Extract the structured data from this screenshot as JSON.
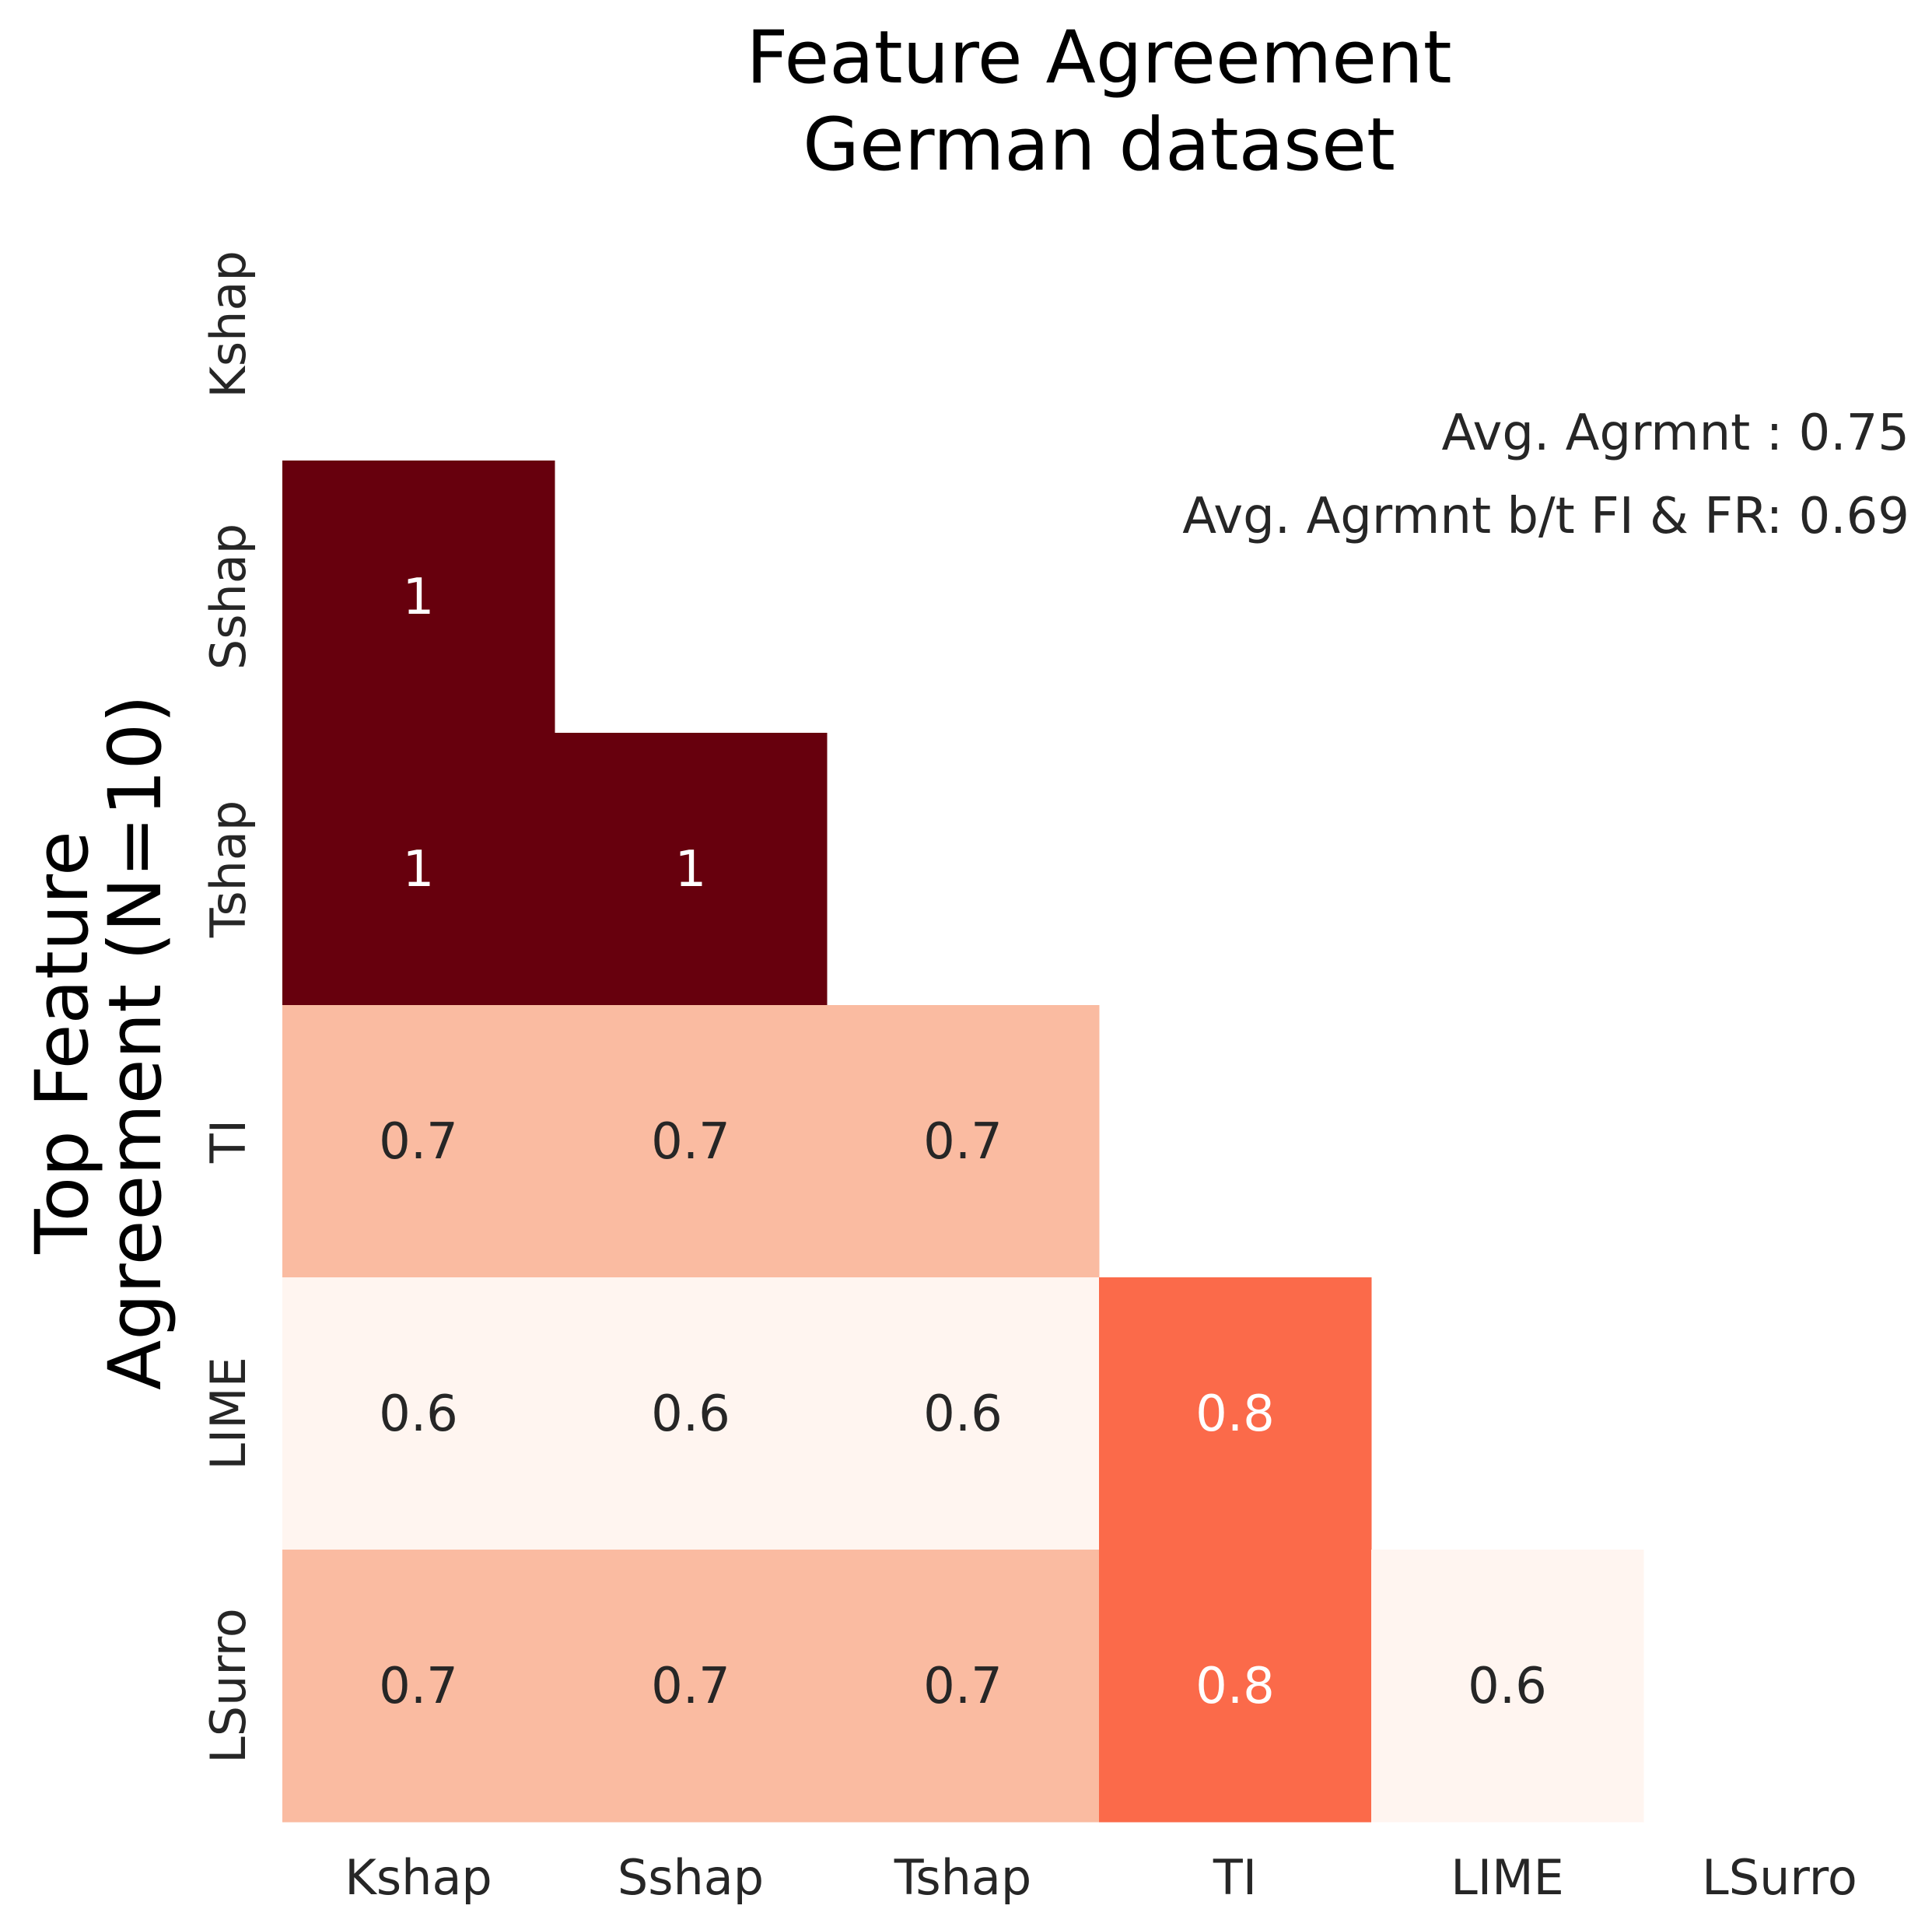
{
  "chart_data": {
    "type": "heatmap",
    "title": [
      "Feature Agreement",
      "German dataset"
    ],
    "ylabel": [
      "Top Feature",
      "Agreement (N=10)"
    ],
    "xlabel": "",
    "methods": [
      "Kshap",
      "Sshap",
      "Tshap",
      "TI",
      "LIME",
      "LSurro"
    ],
    "x_tick_labels": [
      "Kshap",
      "Sshap",
      "Tshap",
      "TI",
      "LIME",
      "LSurro"
    ],
    "y_tick_labels": [
      "Kshap",
      "Sshap",
      "Tshap",
      "TI",
      "LIME",
      "LSurro"
    ],
    "mask": "upper triangle including diagonal",
    "matrix": [
      [
        null,
        null,
        null,
        null,
        null,
        null
      ],
      [
        1,
        null,
        null,
        null,
        null,
        null
      ],
      [
        1,
        1,
        null,
        null,
        null,
        null
      ],
      [
        0.7,
        0.7,
        0.7,
        null,
        null,
        null
      ],
      [
        0.6,
        0.6,
        0.6,
        0.8,
        null,
        null
      ],
      [
        0.7,
        0.7,
        0.7,
        0.8,
        0.6,
        null
      ]
    ],
    "annotations": [
      [
        null,
        null,
        null,
        null,
        null,
        null
      ],
      [
        "1",
        null,
        null,
        null,
        null,
        null
      ],
      [
        "1",
        "1",
        null,
        null,
        null,
        null
      ],
      [
        "0.7",
        "0.7",
        "0.7",
        null,
        null,
        null
      ],
      [
        "0.6",
        "0.6",
        "0.6",
        "0.8",
        null,
        null
      ],
      [
        "0.7",
        "0.7",
        "0.7",
        "0.8",
        "0.6",
        null
      ]
    ],
    "colormap": "Reds",
    "vmin": 0.6,
    "vmax": 1.0,
    "colorbar": false,
    "grid": false,
    "cell_colors": {
      "1": "#67000d",
      "0.8": "#fb6a4a",
      "0.7": "#fabba1",
      "0.6": "#fff5f0"
    },
    "text_colors": {
      "light": "#ffffff",
      "dark": "#262626"
    },
    "stats": [
      "Avg. Agrmnt : 0.75",
      "Avg. Agrmnt b/t FI & FR: 0.69"
    ]
  }
}
